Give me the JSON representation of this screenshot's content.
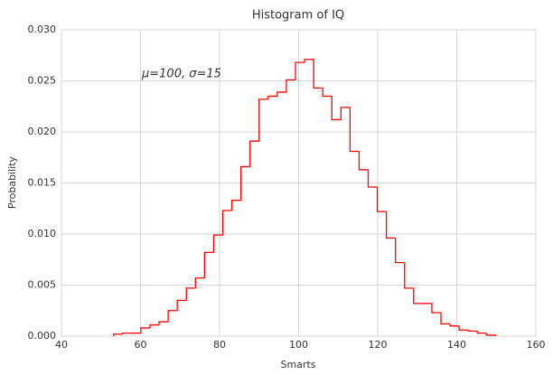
{
  "chart_data": {
    "type": "histogram",
    "title": "Histogram of IQ",
    "x_label": "Smarts",
    "y_label": "Probability",
    "annotation": "$\\mu=100,\\ \\sigma=15$",
    "annotation_text": "μ=100,  σ=15",
    "bins": [
      53.2,
      55.5,
      57.8,
      60.1,
      62.4,
      64.7,
      67.0,
      69.3,
      71.6,
      73.9,
      76.2,
      78.5,
      80.8,
      83.1,
      85.4,
      87.7,
      90.0,
      92.3,
      94.6,
      96.9,
      99.2,
      101.5,
      103.8,
      106.1,
      108.4,
      110.7,
      113.0,
      115.3,
      117.6,
      119.9,
      122.2,
      124.5,
      126.8,
      129.1,
      131.4,
      133.7,
      136.0,
      138.3,
      140.6,
      142.9,
      145.2,
      147.5,
      149.8
    ],
    "values": [
      0.0002,
      0.0003,
      0.0003,
      0.0008,
      0.0011,
      0.0014,
      0.0025,
      0.0035,
      0.0047,
      0.0057,
      0.0082,
      0.0099,
      0.0123,
      0.0133,
      0.0166,
      0.0191,
      0.0232,
      0.0235,
      0.0239,
      0.0251,
      0.0268,
      0.0271,
      0.0243,
      0.0235,
      0.0212,
      0.0224,
      0.0181,
      0.0163,
      0.0146,
      0.0122,
      0.0096,
      0.0072,
      0.0047,
      0.0032,
      0.0032,
      0.0023,
      0.0012,
      0.001,
      0.0006,
      0.0005,
      0.0003,
      0.0001
    ],
    "color": "#ff0000",
    "xlim": [
      40,
      160
    ],
    "xticks": [
      40,
      60,
      80,
      100,
      120,
      140,
      160
    ],
    "ylim": [
      0,
      0.03
    ],
    "yticks": [
      {
        "value": 0,
        "label": "0.000"
      },
      {
        "value": 0.005,
        "label": "0.005"
      },
      {
        "value": 0.01,
        "label": "0.010"
      },
      {
        "value": 0.015,
        "label": "0.015"
      },
      {
        "value": 0.02,
        "label": "0.020"
      },
      {
        "value": 0.025,
        "label": "0.025"
      },
      {
        "value": 0.03,
        "label": "0.030"
      }
    ],
    "grid": true
  }
}
